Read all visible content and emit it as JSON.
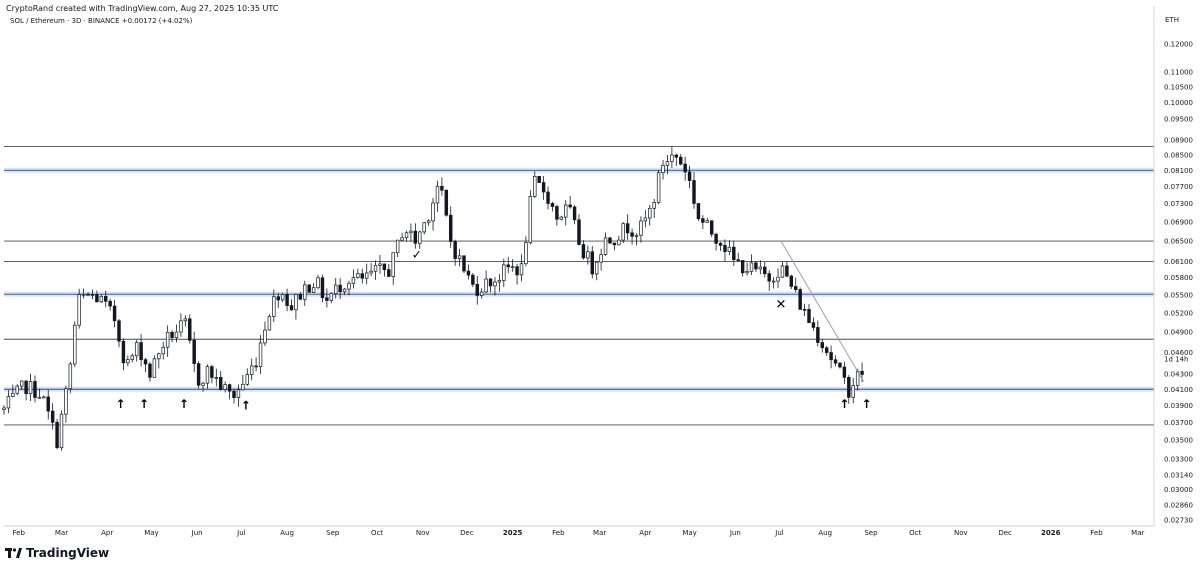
{
  "header": {
    "attribution": "CryptoRand created with TradingView.com, Aug 27, 2025 10:35 UTC",
    "symbol": "SOL / Ethereum · 3D · BINANCE",
    "change": "+0.00172 (+4.02%)",
    "brand": "TradingView"
  },
  "chart_data": {
    "type": "candlestick",
    "title": "SOL / Ethereum · 3D · BINANCE",
    "y_unit": "ETH",
    "y_scale": "log",
    "ylim": [
      0.0268,
      0.135
    ],
    "grid": false,
    "y_ticks": [
      0.12,
      0.11,
      0.105,
      0.1,
      0.095,
      0.089,
      0.085,
      0.081,
      0.077,
      0.073,
      0.069,
      0.065,
      0.061,
      0.058,
      0.055,
      0.052,
      0.049,
      0.046,
      0.043,
      0.041,
      0.039,
      0.037,
      0.035,
      0.033,
      0.0314,
      0.03,
      0.0286,
      0.0273
    ],
    "y_tick_labels": [
      "0.12000",
      "0.11000",
      "0.10500",
      "0.10000",
      "0.09500",
      "0.08900",
      "0.08500",
      "0.08100",
      "0.07700",
      "0.07300",
      "0.06900",
      "0.06500",
      "0.06100",
      "0.05800",
      "0.05500",
      "0.05200",
      "0.04900",
      "0.04600",
      "0.04300",
      "0.04100",
      "0.03900",
      "0.03700",
      "0.03500",
      "0.03300",
      "0.03140",
      "0.03000",
      "0.02860",
      "0.02730"
    ],
    "countdown_label": "1d 14h",
    "x_start": "2024-01-22",
    "x_end": "2026-03-12",
    "x_ticks": [
      {
        "date": "2024-02-01",
        "label": "Feb",
        "year": false
      },
      {
        "date": "2024-03-01",
        "label": "Mar",
        "year": false
      },
      {
        "date": "2024-04-01",
        "label": "Apr",
        "year": false
      },
      {
        "date": "2024-05-01",
        "label": "May",
        "year": false
      },
      {
        "date": "2024-06-01",
        "label": "Jun",
        "year": false
      },
      {
        "date": "2024-07-01",
        "label": "Jul",
        "year": false
      },
      {
        "date": "2024-08-01",
        "label": "Aug",
        "year": false
      },
      {
        "date": "2024-09-01",
        "label": "Sep",
        "year": false
      },
      {
        "date": "2024-10-01",
        "label": "Oct",
        "year": false
      },
      {
        "date": "2024-11-01",
        "label": "Nov",
        "year": false
      },
      {
        "date": "2024-12-01",
        "label": "Dec",
        "year": false
      },
      {
        "date": "2025-01-01",
        "label": "2025",
        "year": true
      },
      {
        "date": "2025-02-01",
        "label": "Feb",
        "year": false
      },
      {
        "date": "2025-03-01",
        "label": "Mar",
        "year": false
      },
      {
        "date": "2025-04-01",
        "label": "Apr",
        "year": false
      },
      {
        "date": "2025-05-01",
        "label": "May",
        "year": false
      },
      {
        "date": "2025-06-01",
        "label": "Jun",
        "year": false
      },
      {
        "date": "2025-07-01",
        "label": "Jul",
        "year": false
      },
      {
        "date": "2025-08-01",
        "label": "Aug",
        "year": false
      },
      {
        "date": "2025-09-01",
        "label": "Sep",
        "year": false
      },
      {
        "date": "2025-10-01",
        "label": "Oct",
        "year": false
      },
      {
        "date": "2025-11-01",
        "label": "Nov",
        "year": false
      },
      {
        "date": "2025-12-01",
        "label": "Dec",
        "year": false
      },
      {
        "date": "2026-01-01",
        "label": "2026",
        "year": true
      },
      {
        "date": "2026-02-01",
        "label": "Feb",
        "year": false
      },
      {
        "date": "2026-03-01",
        "label": "Mar",
        "year": false
      }
    ],
    "close_series": [
      [
        "2024-01-22",
        0.0385
      ],
      [
        "2024-02-05",
        0.0415
      ],
      [
        "2024-02-16",
        0.0405
      ],
      [
        "2024-02-27",
        0.035
      ],
      [
        "2024-03-06",
        0.0425
      ],
      [
        "2024-03-12",
        0.054
      ],
      [
        "2024-03-20",
        0.055
      ],
      [
        "2024-03-28",
        0.054
      ],
      [
        "2024-04-06",
        0.051
      ],
      [
        "2024-04-14",
        0.044
      ],
      [
        "2024-04-22",
        0.047
      ],
      [
        "2024-04-30",
        0.043
      ],
      [
        "2024-05-08",
        0.047
      ],
      [
        "2024-05-16",
        0.049
      ],
      [
        "2024-05-24",
        0.05
      ],
      [
        "2024-06-01",
        0.042
      ],
      [
        "2024-06-09",
        0.0435
      ],
      [
        "2024-06-17",
        0.0415
      ],
      [
        "2024-06-25",
        0.04
      ],
      [
        "2024-07-03",
        0.042
      ],
      [
        "2024-07-11",
        0.045
      ],
      [
        "2024-07-19",
        0.052
      ],
      [
        "2024-07-27",
        0.056
      ],
      [
        "2024-08-04",
        0.053
      ],
      [
        "2024-08-12",
        0.056
      ],
      [
        "2024-08-20",
        0.0575
      ],
      [
        "2024-08-28",
        0.054
      ],
      [
        "2024-09-05",
        0.0565
      ],
      [
        "2024-09-13",
        0.058
      ],
      [
        "2024-09-21",
        0.0575
      ],
      [
        "2024-09-29",
        0.059
      ],
      [
        "2024-10-10",
        0.0595
      ],
      [
        "2024-10-19",
        0.068
      ],
      [
        "2024-10-27",
        0.065
      ],
      [
        "2024-11-04",
        0.07
      ],
      [
        "2024-11-12",
        0.078
      ],
      [
        "2024-11-20",
        0.065
      ],
      [
        "2024-11-28",
        0.06
      ],
      [
        "2024-12-06",
        0.056
      ],
      [
        "2024-12-14",
        0.057
      ],
      [
        "2024-12-22",
        0.058
      ],
      [
        "2024-12-30",
        0.06
      ],
      [
        "2025-01-07",
        0.0595
      ],
      [
        "2025-01-15",
        0.078
      ],
      [
        "2025-01-23",
        0.076
      ],
      [
        "2025-01-31",
        0.07
      ],
      [
        "2025-02-08",
        0.072
      ],
      [
        "2025-02-16",
        0.064
      ],
      [
        "2025-02-24",
        0.06
      ],
      [
        "2025-03-04",
        0.065
      ],
      [
        "2025-03-12",
        0.066
      ],
      [
        "2025-03-20",
        0.068
      ],
      [
        "2025-03-28",
        0.067
      ],
      [
        "2025-04-05",
        0.072
      ],
      [
        "2025-04-13",
        0.083
      ],
      [
        "2025-04-21",
        0.085
      ],
      [
        "2025-04-29",
        0.081
      ],
      [
        "2025-05-07",
        0.07
      ],
      [
        "2025-05-15",
        0.067
      ],
      [
        "2025-05-23",
        0.065
      ],
      [
        "2025-05-31",
        0.061
      ],
      [
        "2025-06-08",
        0.06
      ],
      [
        "2025-06-16",
        0.059
      ],
      [
        "2025-06-24",
        0.058
      ],
      [
        "2025-07-02",
        0.06
      ],
      [
        "2025-07-10",
        0.056
      ],
      [
        "2025-07-18",
        0.052
      ],
      [
        "2025-07-26",
        0.049
      ],
      [
        "2025-08-03",
        0.046
      ],
      [
        "2025-08-11",
        0.043
      ],
      [
        "2025-08-17",
        0.041
      ],
      [
        "2025-08-22",
        0.0425
      ],
      [
        "2025-08-27",
        0.0435
      ]
    ],
    "horizontal_levels": [
      {
        "value": 0.0872,
        "style": "black"
      },
      {
        "value": 0.081,
        "style": "blue"
      },
      {
        "value": 0.065,
        "style": "black"
      },
      {
        "value": 0.061,
        "style": "black"
      },
      {
        "value": 0.0551,
        "style": "blue"
      },
      {
        "value": 0.0479,
        "style": "black"
      },
      {
        "value": 0.041,
        "style": "blue"
      },
      {
        "value": 0.0367,
        "style": "black"
      }
    ],
    "trend_line": {
      "from": [
        "2025-07-02",
        0.065
      ],
      "to": [
        "2025-08-27",
        0.042
      ]
    },
    "annotations": [
      {
        "symbol": "↑",
        "date": "2024-04-10",
        "value": 0.0393
      },
      {
        "symbol": "↑",
        "date": "2024-04-26",
        "value": 0.0393
      },
      {
        "symbol": "↑",
        "date": "2024-05-23",
        "value": 0.0393
      },
      {
        "symbol": "↑",
        "date": "2024-07-04",
        "value": 0.0391
      },
      {
        "symbol": "✓",
        "date": "2024-10-28",
        "value": 0.0625
      },
      {
        "symbol": "✕",
        "date": "2025-07-02",
        "value": 0.0535
      },
      {
        "symbol": "↑",
        "date": "2025-08-14",
        "value": 0.0393
      },
      {
        "symbol": "↑",
        "date": "2025-08-29",
        "value": 0.0393
      }
    ]
  }
}
